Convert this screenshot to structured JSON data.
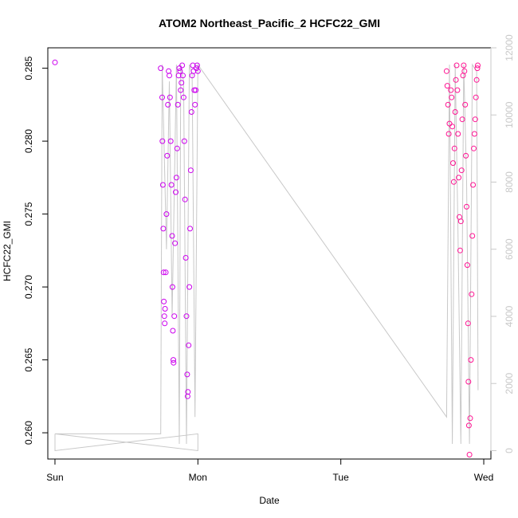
{
  "chart_data": {
    "type": "scatter",
    "title": "ATOM2 Northeast_Pacific_2 HCFC22_GMI",
    "xlabel": "Date",
    "ylabel": "HCFC22_GMI",
    "x_ticks": [
      "Sun",
      "Mon",
      "Tue",
      "Wed"
    ],
    "xlim_days": [
      -0.05,
      3.05
    ],
    "ylim": [
      0.2582,
      0.2864
    ],
    "y_ticks": [
      0.26,
      0.265,
      0.27,
      0.275,
      0.28,
      0.285
    ],
    "y_tick_labels": [
      "0.260",
      "0.265",
      "0.270",
      "0.275",
      "0.280",
      "0.285"
    ],
    "y2lim": [
      -250,
      12000
    ],
    "y2_ticks": [
      "0",
      "2000",
      "4000",
      "6000",
      "8000",
      "10000",
      "12000"
    ],
    "grid": false,
    "legend": "none",
    "colors": {
      "early": "#cc00ee",
      "late": "#ff1493",
      "altitude_line": "#c8c8c8",
      "secondary_axis": "#c8c8c8"
    },
    "series": [
      {
        "role": "HCFC22_GMI",
        "points": [
          [
            0.0,
            0.2854
          ],
          [
            0.74,
            0.285
          ],
          [
            0.75,
            0.283
          ],
          [
            0.752,
            0.28
          ],
          [
            0.755,
            0.277
          ],
          [
            0.758,
            0.274
          ],
          [
            0.76,
            0.271
          ],
          [
            0.762,
            0.269
          ],
          [
            0.765,
            0.268
          ],
          [
            0.768,
            0.2675
          ],
          [
            0.77,
            0.2685
          ],
          [
            0.775,
            0.271
          ],
          [
            0.78,
            0.275
          ],
          [
            0.785,
            0.279
          ],
          [
            0.79,
            0.2825
          ],
          [
            0.795,
            0.2848
          ],
          [
            0.8,
            0.2845
          ],
          [
            0.805,
            0.283
          ],
          [
            0.81,
            0.28
          ],
          [
            0.815,
            0.277
          ],
          [
            0.82,
            0.2735
          ],
          [
            0.822,
            0.27
          ],
          [
            0.825,
            0.267
          ],
          [
            0.828,
            0.265
          ],
          [
            0.83,
            0.2648
          ],
          [
            0.835,
            0.268
          ],
          [
            0.84,
            0.273
          ],
          [
            0.845,
            0.2765
          ],
          [
            0.85,
            0.2775
          ],
          [
            0.855,
            0.2795
          ],
          [
            0.86,
            0.2825
          ],
          [
            0.865,
            0.2845
          ],
          [
            0.87,
            0.285
          ],
          [
            0.875,
            0.2848
          ],
          [
            0.88,
            0.2835
          ],
          [
            0.885,
            0.284
          ],
          [
            0.89,
            0.2852
          ],
          [
            0.895,
            0.2845
          ],
          [
            0.9,
            0.283
          ],
          [
            0.905,
            0.28
          ],
          [
            0.91,
            0.276
          ],
          [
            0.915,
            0.272
          ],
          [
            0.92,
            0.268
          ],
          [
            0.925,
            0.264
          ],
          [
            0.928,
            0.2625
          ],
          [
            0.93,
            0.2628
          ],
          [
            0.935,
            0.266
          ],
          [
            0.94,
            0.27
          ],
          [
            0.945,
            0.274
          ],
          [
            0.95,
            0.278
          ],
          [
            0.955,
            0.282
          ],
          [
            0.96,
            0.2845
          ],
          [
            0.965,
            0.2852
          ],
          [
            0.97,
            0.2848
          ],
          [
            0.975,
            0.2835
          ],
          [
            0.98,
            0.2825
          ],
          [
            0.985,
            0.2835
          ],
          [
            0.99,
            0.285
          ],
          [
            0.995,
            0.2852
          ],
          [
            1.0,
            0.2848
          ],
          [
            2.74,
            0.2848
          ],
          [
            2.745,
            0.2838
          ],
          [
            2.75,
            0.2825
          ],
          [
            2.755,
            0.2805
          ],
          [
            2.76,
            0.2812
          ],
          [
            2.77,
            0.2835
          ],
          [
            2.775,
            0.283
          ],
          [
            2.78,
            0.281
          ],
          [
            2.785,
            0.2785
          ],
          [
            2.79,
            0.2772
          ],
          [
            2.795,
            0.2795
          ],
          [
            2.8,
            0.282
          ],
          [
            2.805,
            0.2842
          ],
          [
            2.81,
            0.2852
          ],
          [
            2.815,
            0.2835
          ],
          [
            2.82,
            0.2805
          ],
          [
            2.825,
            0.2775
          ],
          [
            2.83,
            0.2748
          ],
          [
            2.835,
            0.2725
          ],
          [
            2.84,
            0.2745
          ],
          [
            2.845,
            0.278
          ],
          [
            2.85,
            0.2815
          ],
          [
            2.855,
            0.2845
          ],
          [
            2.86,
            0.2852
          ],
          [
            2.865,
            0.2848
          ],
          [
            2.87,
            0.2825
          ],
          [
            2.875,
            0.279
          ],
          [
            2.88,
            0.2755
          ],
          [
            2.885,
            0.2715
          ],
          [
            2.89,
            0.2675
          ],
          [
            2.893,
            0.2635
          ],
          [
            2.896,
            0.2605
          ],
          [
            2.9,
            0.2585
          ],
          [
            2.905,
            0.261
          ],
          [
            2.91,
            0.265
          ],
          [
            2.915,
            0.2695
          ],
          [
            2.92,
            0.2735
          ],
          [
            2.925,
            0.277
          ],
          [
            2.93,
            0.2795
          ],
          [
            2.935,
            0.2805
          ],
          [
            2.94,
            0.2815
          ],
          [
            2.945,
            0.283
          ],
          [
            2.95,
            0.2842
          ],
          [
            2.955,
            0.285
          ],
          [
            2.958,
            0.2852
          ]
        ]
      }
    ],
    "altitude_line": {
      "axis": "secondary",
      "points": [
        [
          0.0,
          500
        ],
        [
          0.0,
          0
        ],
        [
          1.0,
          500
        ],
        [
          1.0,
          0
        ],
        [
          0.0,
          500
        ],
        [
          0.74,
          500
        ],
        [
          0.75,
          11500
        ],
        [
          0.78,
          6000
        ],
        [
          0.8,
          11000
        ],
        [
          0.82,
          4000
        ],
        [
          0.85,
          11500
        ],
        [
          0.87,
          200
        ],
        [
          0.88,
          11500
        ],
        [
          0.9,
          11000
        ],
        [
          0.92,
          200
        ],
        [
          0.94,
          11500
        ],
        [
          0.96,
          11200
        ],
        [
          0.98,
          1000
        ],
        [
          1.0,
          11500
        ],
        [
          2.74,
          1000
        ],
        [
          2.76,
          11500
        ],
        [
          2.78,
          200
        ],
        [
          2.8,
          11500
        ],
        [
          2.82,
          6500
        ],
        [
          2.84,
          200
        ],
        [
          2.86,
          11500
        ],
        [
          2.88,
          8000
        ],
        [
          2.9,
          200
        ],
        [
          2.92,
          11500
        ],
        [
          2.95,
          11300
        ],
        [
          2.96,
          1800
        ]
      ]
    }
  }
}
